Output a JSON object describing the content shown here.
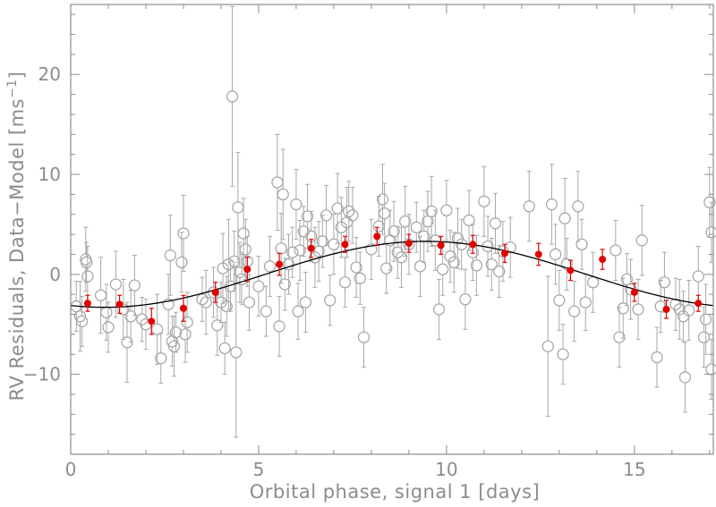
{
  "chart_data": {
    "type": "scatter",
    "xlabel": "Orbital phase, signal 1 [days]",
    "ylabel_main": "RV Residuals, Data−Model [ms",
    "ylabel_sup": "−1",
    "ylabel_end": "]",
    "xlim": [
      0,
      17.1
    ],
    "ylim": [
      -18,
      27
    ],
    "x_ticks": [
      0,
      5,
      10,
      15
    ],
    "x_tick_labels": [
      "0",
      "5",
      "10",
      "15"
    ],
    "y_ticks": [
      -10,
      0,
      10,
      20
    ],
    "y_tick_labels": [
      "−10",
      "0",
      "10",
      "20"
    ],
    "grid": false,
    "legend": "none",
    "colors": {
      "raw": "#a8a8a8",
      "binned": "#e00000",
      "model": "#000000",
      "axes": "#8c8c8c"
    },
    "model_curve": {
      "kind": "sinusoid",
      "amplitude": 3.3,
      "period": 17.1,
      "peak_x": 9.45,
      "offset": 0
    },
    "raw_data": [
      {
        "x": 0.15,
        "y": -3.2,
        "e": 2.5
      },
      {
        "x": 0.25,
        "y": -4.2,
        "e": 3.5
      },
      {
        "x": 0.3,
        "y": -4.7,
        "e": 2.5
      },
      {
        "x": 0.4,
        "y": 1.5,
        "e": 3.2
      },
      {
        "x": 0.42,
        "y": 1.2,
        "e": 2.0
      },
      {
        "x": 0.45,
        "y": -0.2,
        "e": 3.0
      },
      {
        "x": 0.8,
        "y": -2.1,
        "e": 3.8
      },
      {
        "x": 0.95,
        "y": -3.8,
        "e": 2.8
      },
      {
        "x": 1.0,
        "y": -5.3,
        "e": 2.5
      },
      {
        "x": 1.2,
        "y": -1.0,
        "e": 3.3
      },
      {
        "x": 1.4,
        "y": -3.5,
        "e": 3.0
      },
      {
        "x": 1.5,
        "y": -6.8,
        "e": 4.0
      },
      {
        "x": 1.6,
        "y": -4.2,
        "e": 2.6
      },
      {
        "x": 1.7,
        "y": -1.1,
        "e": 3.0
      },
      {
        "x": 1.9,
        "y": -4.5,
        "e": 2.2
      },
      {
        "x": 2.0,
        "y": -5.0,
        "e": 2.5
      },
      {
        "x": 2.3,
        "y": -5.5,
        "e": 3.5
      },
      {
        "x": 2.4,
        "y": -8.4,
        "e": 2.5
      },
      {
        "x": 2.6,
        "y": -3.0,
        "e": 3.0
      },
      {
        "x": 2.65,
        "y": 1.9,
        "e": 4.0
      },
      {
        "x": 2.7,
        "y": -6.7,
        "e": 2.5
      },
      {
        "x": 2.75,
        "y": -7.2,
        "e": 3.0
      },
      {
        "x": 2.8,
        "y": -5.8,
        "e": 2.0
      },
      {
        "x": 2.95,
        "y": 1.2,
        "e": 3.0
      },
      {
        "x": 3.0,
        "y": 4.1,
        "e": 3.8
      },
      {
        "x": 3.05,
        "y": -6.0,
        "e": 2.8
      },
      {
        "x": 3.1,
        "y": -4.8,
        "e": 3.0
      },
      {
        "x": 3.5,
        "y": -2.5,
        "e": 2.2
      },
      {
        "x": 3.6,
        "y": -2.8,
        "e": 3.2
      },
      {
        "x": 3.8,
        "y": -1.8,
        "e": 2.5
      },
      {
        "x": 3.9,
        "y": -5.1,
        "e": 3.0
      },
      {
        "x": 4.0,
        "y": -2.8,
        "e": 2.0
      },
      {
        "x": 4.05,
        "y": 0.6,
        "e": 3.5
      },
      {
        "x": 4.1,
        "y": -7.4,
        "e": 2.6
      },
      {
        "x": 4.15,
        "y": -3.2,
        "e": 3.0
      },
      {
        "x": 4.2,
        "y": 1.0,
        "e": 4.5
      },
      {
        "x": 4.25,
        "y": -1.2,
        "e": 2.5
      },
      {
        "x": 4.3,
        "y": 17.8,
        "e": 9.0
      },
      {
        "x": 4.35,
        "y": 1.3,
        "e": 3.0
      },
      {
        "x": 4.4,
        "y": -7.8,
        "e": 8.5
      },
      {
        "x": 4.45,
        "y": 6.7,
        "e": 5.5
      },
      {
        "x": 4.5,
        "y": 0.2,
        "e": 3.0
      },
      {
        "x": 4.55,
        "y": -0.5,
        "e": 2.5
      },
      {
        "x": 4.6,
        "y": 4.1,
        "e": 3.5
      },
      {
        "x": 4.65,
        "y": 2.5,
        "e": 3.0
      },
      {
        "x": 4.7,
        "y": 1.3,
        "e": 2.5
      },
      {
        "x": 4.75,
        "y": -2.8,
        "e": 2.8
      },
      {
        "x": 5.0,
        "y": -1.2,
        "e": 3.0
      },
      {
        "x": 5.2,
        "y": -3.7,
        "e": 2.5
      },
      {
        "x": 5.3,
        "y": 0.8,
        "e": 3.0
      },
      {
        "x": 5.5,
        "y": 9.2,
        "e": 4.8
      },
      {
        "x": 5.55,
        "y": -5.2,
        "e": 3.0
      },
      {
        "x": 5.6,
        "y": 2.6,
        "e": 3.5
      },
      {
        "x": 5.65,
        "y": 8.0,
        "e": 4.5
      },
      {
        "x": 5.7,
        "y": -1.0,
        "e": 2.6
      },
      {
        "x": 5.8,
        "y": 1.0,
        "e": 3.0
      },
      {
        "x": 5.9,
        "y": 2.2,
        "e": 2.5
      },
      {
        "x": 6.0,
        "y": 7.0,
        "e": 3.5
      },
      {
        "x": 6.05,
        "y": -3.7,
        "e": 2.8
      },
      {
        "x": 6.1,
        "y": 2.4,
        "e": 3.0
      },
      {
        "x": 6.2,
        "y": 4.3,
        "e": 2.5
      },
      {
        "x": 6.25,
        "y": -2.8,
        "e": 3.0
      },
      {
        "x": 6.3,
        "y": 5.8,
        "e": 3.2
      },
      {
        "x": 6.4,
        "y": 3.8,
        "e": 2.5
      },
      {
        "x": 6.5,
        "y": 1.7,
        "e": 3.0
      },
      {
        "x": 6.6,
        "y": 2.3,
        "e": 3.0
      },
      {
        "x": 6.7,
        "y": 3.3,
        "e": 2.6
      },
      {
        "x": 6.8,
        "y": 5.9,
        "e": 3.0
      },
      {
        "x": 6.9,
        "y": -2.6,
        "e": 2.5
      },
      {
        "x": 7.0,
        "y": 3.0,
        "e": 3.0
      },
      {
        "x": 7.1,
        "y": 6.6,
        "e": 3.5
      },
      {
        "x": 7.2,
        "y": 4.7,
        "e": 3.0
      },
      {
        "x": 7.3,
        "y": -0.8,
        "e": 2.5
      },
      {
        "x": 7.35,
        "y": 5.2,
        "e": 3.5
      },
      {
        "x": 7.4,
        "y": 6.3,
        "e": 3.0
      },
      {
        "x": 7.5,
        "y": 5.9,
        "e": 2.8
      },
      {
        "x": 7.6,
        "y": 0.7,
        "e": 3.0
      },
      {
        "x": 7.7,
        "y": -0.4,
        "e": 2.6
      },
      {
        "x": 7.8,
        "y": -6.3,
        "e": 3.0
      },
      {
        "x": 8.0,
        "y": 2.5,
        "e": 3.0
      },
      {
        "x": 8.2,
        "y": 4.8,
        "e": 3.0
      },
      {
        "x": 8.3,
        "y": 7.5,
        "e": 3.5
      },
      {
        "x": 8.35,
        "y": 6.1,
        "e": 3.0
      },
      {
        "x": 8.4,
        "y": 0.6,
        "e": 2.5
      },
      {
        "x": 8.5,
        "y": 3.4,
        "e": 3.0
      },
      {
        "x": 8.6,
        "y": 4.3,
        "e": 3.0
      },
      {
        "x": 8.7,
        "y": 2.2,
        "e": 2.6
      },
      {
        "x": 8.8,
        "y": 1.7,
        "e": 3.0
      },
      {
        "x": 8.9,
        "y": 5.3,
        "e": 3.5
      },
      {
        "x": 9.0,
        "y": 3.0,
        "e": 3.0
      },
      {
        "x": 9.2,
        "y": 4.7,
        "e": 2.5
      },
      {
        "x": 9.3,
        "y": 0.8,
        "e": 3.0
      },
      {
        "x": 9.4,
        "y": 3.8,
        "e": 2.6
      },
      {
        "x": 9.5,
        "y": 5.3,
        "e": 3.0
      },
      {
        "x": 9.6,
        "y": 6.3,
        "e": 3.5
      },
      {
        "x": 9.7,
        "y": 3.4,
        "e": 3.0
      },
      {
        "x": 9.8,
        "y": -3.5,
        "e": 3.0
      },
      {
        "x": 9.9,
        "y": 0.5,
        "e": 2.6
      },
      {
        "x": 10.0,
        "y": 6.4,
        "e": 3.0
      },
      {
        "x": 10.1,
        "y": 1.8,
        "e": 2.6
      },
      {
        "x": 10.2,
        "y": 1.2,
        "e": 3.0
      },
      {
        "x": 10.3,
        "y": 3.6,
        "e": 3.0
      },
      {
        "x": 10.4,
        "y": 3.0,
        "e": 2.5
      },
      {
        "x": 10.5,
        "y": -2.5,
        "e": 3.0
      },
      {
        "x": 10.6,
        "y": 5.4,
        "e": 3.0
      },
      {
        "x": 10.7,
        "y": 2.2,
        "e": 2.8
      },
      {
        "x": 10.8,
        "y": 0.9,
        "e": 3.0
      },
      {
        "x": 11.0,
        "y": 7.3,
        "e": 3.5
      },
      {
        "x": 11.1,
        "y": 2.8,
        "e": 3.0
      },
      {
        "x": 11.2,
        "y": 1.0,
        "e": 2.6
      },
      {
        "x": 11.3,
        "y": 5.1,
        "e": 3.0
      },
      {
        "x": 11.4,
        "y": 0.3,
        "e": 2.6
      },
      {
        "x": 11.5,
        "y": 2.3,
        "e": 3.0
      },
      {
        "x": 11.7,
        "y": 2.7,
        "e": 3.0
      },
      {
        "x": 12.2,
        "y": 6.8,
        "e": 3.5
      },
      {
        "x": 12.7,
        "y": -7.2,
        "e": 7.0
      },
      {
        "x": 12.8,
        "y": 7.0,
        "e": 4.0
      },
      {
        "x": 12.9,
        "y": 2.0,
        "e": 3.0
      },
      {
        "x": 13.0,
        "y": -2.6,
        "e": 3.0
      },
      {
        "x": 13.1,
        "y": -8.0,
        "e": 3.0
      },
      {
        "x": 13.15,
        "y": 5.6,
        "e": 4.0
      },
      {
        "x": 13.2,
        "y": 1.0,
        "e": 2.6
      },
      {
        "x": 13.4,
        "y": -3.7,
        "e": 3.0
      },
      {
        "x": 13.5,
        "y": 6.8,
        "e": 3.5
      },
      {
        "x": 13.6,
        "y": 3.0,
        "e": 2.5
      },
      {
        "x": 13.7,
        "y": -2.8,
        "e": 2.8
      },
      {
        "x": 13.9,
        "y": -0.8,
        "e": 3.0
      },
      {
        "x": 14.5,
        "y": 2.4,
        "e": 3.0
      },
      {
        "x": 14.6,
        "y": -6.3,
        "e": 3.0
      },
      {
        "x": 14.7,
        "y": -3.4,
        "e": 3.0
      },
      {
        "x": 14.8,
        "y": -0.5,
        "e": 2.6
      },
      {
        "x": 14.9,
        "y": -1.5,
        "e": 3.0
      },
      {
        "x": 15.1,
        "y": -3.5,
        "e": 3.0
      },
      {
        "x": 15.2,
        "y": 3.4,
        "e": 3.5
      },
      {
        "x": 15.6,
        "y": -8.3,
        "e": 3.0
      },
      {
        "x": 15.7,
        "y": -3.2,
        "e": 2.6
      },
      {
        "x": 15.8,
        "y": -0.8,
        "e": 3.0
      },
      {
        "x": 16.1,
        "y": -3.0,
        "e": 2.6
      },
      {
        "x": 16.2,
        "y": -3.5,
        "e": 3.0
      },
      {
        "x": 16.3,
        "y": -4.2,
        "e": 2.5
      },
      {
        "x": 16.35,
        "y": -10.3,
        "e": 3.5
      },
      {
        "x": 16.45,
        "y": -3.6,
        "e": 3.0
      },
      {
        "x": 16.7,
        "y": -0.2,
        "e": 3.0
      },
      {
        "x": 16.85,
        "y": -6.3,
        "e": 3.0
      },
      {
        "x": 16.9,
        "y": -4.5,
        "e": 3.5
      },
      {
        "x": 17.0,
        "y": 7.2,
        "e": 3.5
      },
      {
        "x": 17.05,
        "y": 4.2,
        "e": 3.0
      },
      {
        "x": 17.05,
        "y": -9.5,
        "e": 3.0
      }
    ],
    "binned_data": [
      {
        "x": 0.45,
        "y": -2.9,
        "e": 0.8
      },
      {
        "x": 1.3,
        "y": -3.0,
        "e": 0.9
      },
      {
        "x": 2.15,
        "y": -4.7,
        "e": 1.3
      },
      {
        "x": 3.0,
        "y": -3.4,
        "e": 1.3
      },
      {
        "x": 3.85,
        "y": -1.8,
        "e": 1.0
      },
      {
        "x": 4.7,
        "y": 0.5,
        "e": 1.2
      },
      {
        "x": 5.55,
        "y": 1.0,
        "e": 1.1
      },
      {
        "x": 6.4,
        "y": 2.6,
        "e": 0.9
      },
      {
        "x": 7.3,
        "y": 3.0,
        "e": 0.8
      },
      {
        "x": 8.15,
        "y": 3.8,
        "e": 0.9
      },
      {
        "x": 9.0,
        "y": 3.1,
        "e": 0.9
      },
      {
        "x": 9.85,
        "y": 2.9,
        "e": 0.9
      },
      {
        "x": 10.7,
        "y": 3.0,
        "e": 0.9
      },
      {
        "x": 11.55,
        "y": 2.1,
        "e": 0.9
      },
      {
        "x": 12.45,
        "y": 2.0,
        "e": 1.1
      },
      {
        "x": 13.3,
        "y": 0.4,
        "e": 1.0
      },
      {
        "x": 14.15,
        "y": 1.5,
        "e": 1.0
      },
      {
        "x": 15.0,
        "y": -1.8,
        "e": 0.9
      },
      {
        "x": 15.85,
        "y": -3.5,
        "e": 0.9
      },
      {
        "x": 16.7,
        "y": -2.9,
        "e": 0.8
      }
    ]
  }
}
